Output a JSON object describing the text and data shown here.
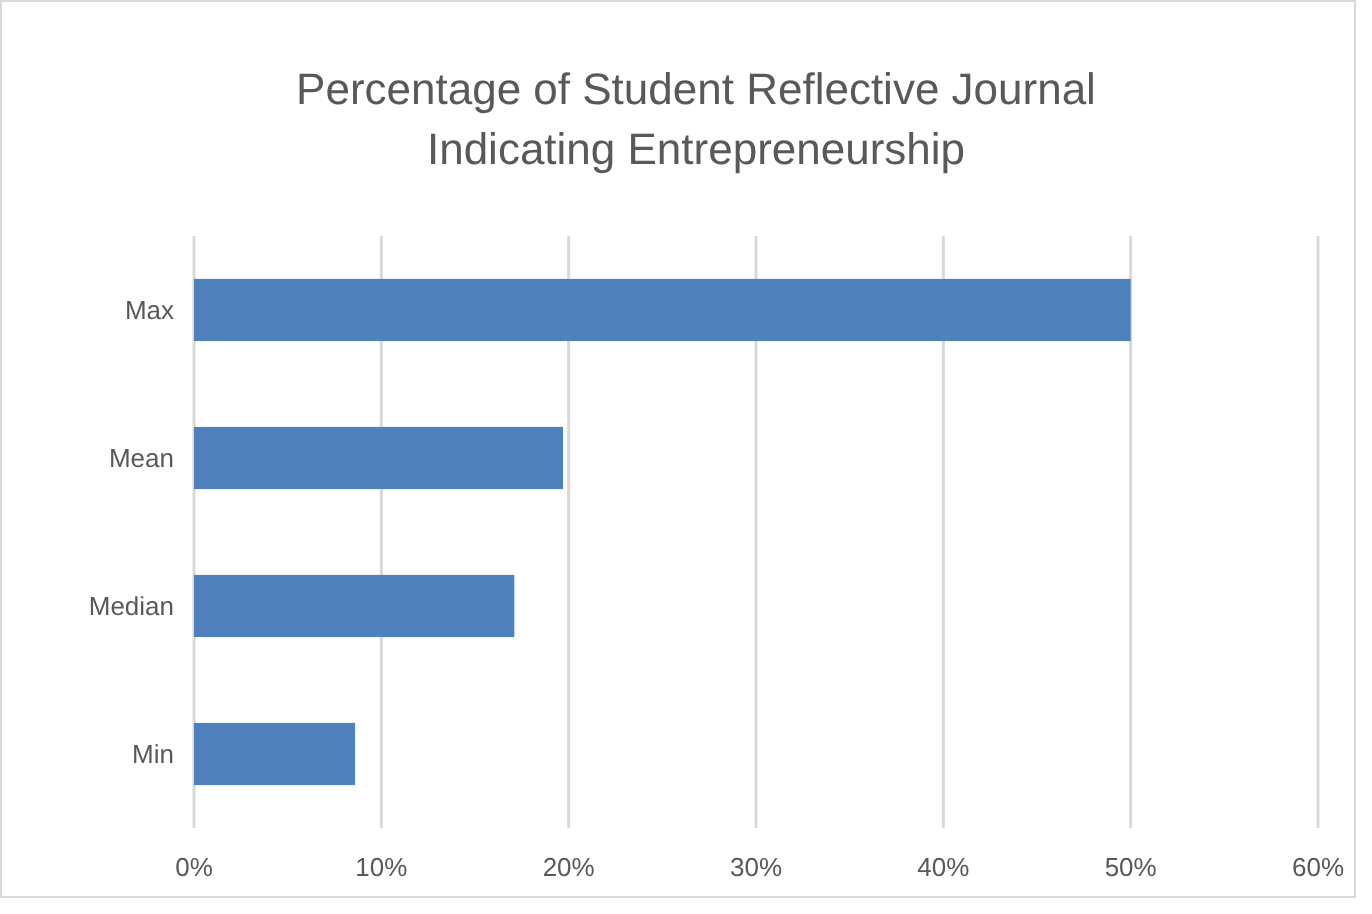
{
  "chart_data": {
    "type": "bar",
    "orientation": "horizontal",
    "title": "Percentage of Student Reflective Journal Indicating Entrepreneurship",
    "categories": [
      "Max",
      "Mean",
      "Median",
      "Min"
    ],
    "values": [
      50,
      19.7,
      17.1,
      8.6
    ],
    "color": "#4f81bd",
    "xlim": [
      0,
      60
    ],
    "xticks": [
      {
        "value": 0,
        "label": "0%"
      },
      {
        "value": 10,
        "label": "10%"
      },
      {
        "value": 20,
        "label": "20%"
      },
      {
        "value": 30,
        "label": "30%"
      },
      {
        "value": 40,
        "label": "40%"
      },
      {
        "value": 50,
        "label": "50%"
      },
      {
        "value": 60,
        "label": "60%"
      }
    ],
    "grid": "x"
  }
}
